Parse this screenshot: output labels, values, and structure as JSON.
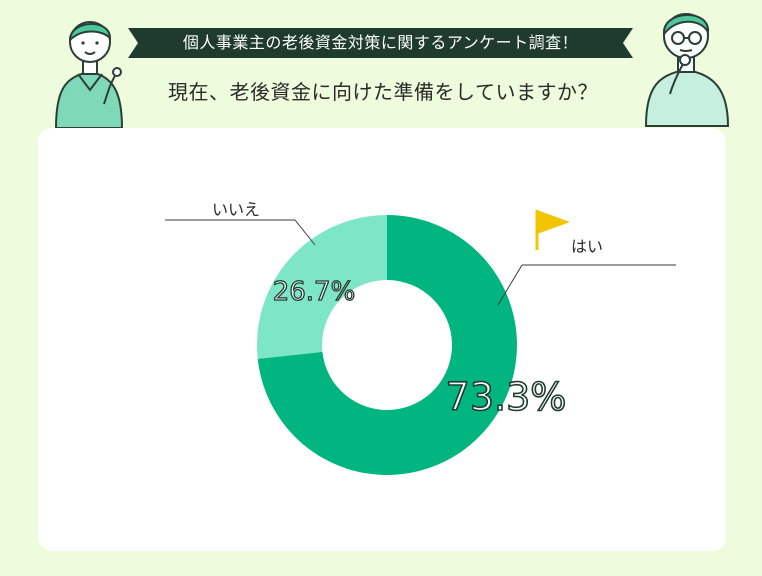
{
  "header": {
    "banner_text": "個人事業主の老後資金対策に関するアンケート調査！",
    "question": "現在、老後資金に向けた準備をしていますか？"
  },
  "colors": {
    "background": "#eefbdc",
    "banner": "#1f3b2f",
    "series_yes": "#00b57f",
    "series_no": "#7de6c6"
  },
  "icons": [
    "flag-icon"
  ],
  "chart_data": {
    "type": "pie",
    "style": "donut",
    "categories": [
      "はい",
      "いいえ"
    ],
    "values": [
      73.3,
      26.7
    ],
    "value_labels": [
      "73.3%",
      "26.7%"
    ],
    "unit": "%",
    "title": "",
    "legend": "callout lines"
  }
}
